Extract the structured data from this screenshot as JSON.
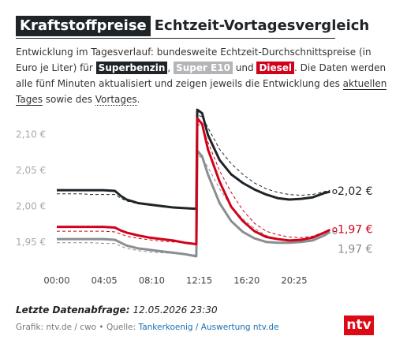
{
  "header": {
    "title": "Kraftstoffpreise",
    "subtitle": "Echtzeit-Vortagesvergleich"
  },
  "description": {
    "intro": "Entwicklung im Tagesverlauf: bundesweite Echtzeit-Durchschnittspreise (in Euro je Liter) für ",
    "sep1": ", ",
    "sep2": " und ",
    "middle": ". Die Daten werden alle fünf Minuten aktualisiert und zeigen jeweils die Entwicklung des ",
    "today": "aktuellen Tages",
    "sep3": " sowie des ",
    "previous": "Vortages",
    "end": "."
  },
  "chart_data": {
    "type": "line",
    "x": [
      "00:00",
      "01:00",
      "02:00",
      "03:00",
      "04:00",
      "05:00",
      "05:30",
      "06:00",
      "07:00",
      "08:00",
      "09:00",
      "10:00",
      "11:00",
      "12:00",
      "12:05",
      "12:30",
      "13:00",
      "14:00",
      "15:00",
      "16:00",
      "17:00",
      "18:00",
      "19:00",
      "20:00",
      "21:00",
      "22:00",
      "23:00",
      "23:30"
    ],
    "xticks": [
      "00:00",
      "04:05",
      "08:10",
      "12:15",
      "16:20",
      "20:25"
    ],
    "ylim": [
      1.92,
      2.14
    ],
    "yticks": [
      {
        "value": 1.95,
        "label": "1,95 €"
      },
      {
        "value": 2.0,
        "label": "2,00 €"
      },
      {
        "value": 2.05,
        "label": "2,05 €"
      },
      {
        "value": 2.1,
        "label": "2,10 €"
      }
    ],
    "grid": false,
    "series": [
      {
        "name": "Superbenzin",
        "color": "#1f2428",
        "values": [
          2.023,
          2.023,
          2.023,
          2.023,
          2.023,
          2.022,
          2.015,
          2.01,
          2.005,
          2.003,
          2.001,
          1.999,
          1.998,
          1.997,
          2.135,
          2.13,
          2.1,
          2.065,
          2.045,
          2.033,
          2.024,
          2.017,
          2.012,
          2.01,
          2.011,
          2.013,
          2.019,
          2.021
        ],
        "previous_values": [
          2.018,
          2.018,
          2.018,
          2.017,
          2.017,
          2.017,
          2.012,
          2.008,
          2.004,
          2.002,
          2.0,
          1.999,
          1.998,
          1.998,
          2.128,
          2.125,
          2.11,
          2.08,
          2.06,
          2.045,
          2.033,
          2.025,
          2.02,
          2.017,
          2.016,
          2.017,
          2.021,
          2.023
        ],
        "value_labels": [
          null,
          null,
          null,
          null,
          null,
          null,
          null,
          null,
          null,
          null,
          null,
          null,
          null,
          null,
          null,
          null,
          null,
          null,
          null,
          null,
          null,
          null,
          null,
          null,
          null,
          null,
          null,
          "2,02 €"
        ]
      },
      {
        "name": "Super E10",
        "color": "#8a8d91",
        "values": [
          1.955,
          1.955,
          1.955,
          1.955,
          1.955,
          1.954,
          1.95,
          1.946,
          1.942,
          1.94,
          1.938,
          1.936,
          1.934,
          1.931,
          2.078,
          2.07,
          2.045,
          2.005,
          1.98,
          1.965,
          1.956,
          1.951,
          1.95,
          1.95,
          1.951,
          1.953,
          1.96,
          1.965
        ],
        "previous_values": [
          1.95,
          1.95,
          1.95,
          1.95,
          1.949,
          1.949,
          1.945,
          1.942,
          1.939,
          1.937,
          1.936,
          1.935,
          1.934,
          1.933,
          2.072,
          2.068,
          2.055,
          2.025,
          2.0,
          1.983,
          1.97,
          1.96,
          1.955,
          1.953,
          1.952,
          1.954,
          1.96,
          1.962
        ],
        "value_labels": [
          null,
          null,
          null,
          null,
          null,
          null,
          null,
          null,
          null,
          null,
          null,
          null,
          null,
          null,
          null,
          null,
          null,
          null,
          null,
          null,
          null,
          null,
          null,
          null,
          null,
          null,
          null,
          "1,97 €"
        ]
      },
      {
        "name": "Diesel",
        "color": "#d0021b",
        "values": [
          1.972,
          1.972,
          1.972,
          1.972,
          1.972,
          1.971,
          1.967,
          1.964,
          1.96,
          1.957,
          1.955,
          1.953,
          1.95,
          1.948,
          2.123,
          2.115,
          2.08,
          2.035,
          2.0,
          1.98,
          1.966,
          1.958,
          1.955,
          1.953,
          1.954,
          1.957,
          1.964,
          1.968
        ],
        "previous_values": [
          1.966,
          1.966,
          1.966,
          1.966,
          1.966,
          1.965,
          1.962,
          1.959,
          1.956,
          1.954,
          1.952,
          1.951,
          1.95,
          1.949,
          2.115,
          2.112,
          2.09,
          2.05,
          2.02,
          1.995,
          1.977,
          1.966,
          1.961,
          1.958,
          1.957,
          1.959,
          1.965,
          1.967
        ],
        "value_labels": [
          null,
          null,
          null,
          null,
          null,
          null,
          null,
          null,
          null,
          null,
          null,
          null,
          null,
          null,
          null,
          null,
          null,
          null,
          null,
          null,
          null,
          null,
          null,
          null,
          null,
          null,
          null,
          "1,97 €"
        ]
      }
    ]
  },
  "footer": {
    "query_label": "Letzte Datenabfrage:",
    "query_time": "12.05.2026 23:30",
    "credit": "Grafik: ntv.de / cwo • Quelle: ",
    "source": "Tankerkoenig / Auswertung ntv.de",
    "logo": "ntv"
  }
}
